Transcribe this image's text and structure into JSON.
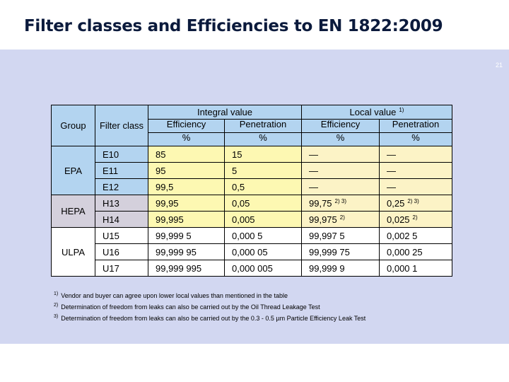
{
  "page": {
    "title": "Filter classes and Efficiencies to EN 1822:2009",
    "page_number": "21"
  },
  "table": {
    "group_header": "Group",
    "filter_class_header": "Filter class",
    "integral_header": "Integral value",
    "local_header": "Local value",
    "local_header_note": "1)",
    "efficiency_label": "Efficiency",
    "penetration_label": "Penetration",
    "percent": "%",
    "groups": [
      "EPA",
      "HEPA",
      "ULPA"
    ],
    "rows": [
      {
        "cls": "E10",
        "ie": "85",
        "ip": "15",
        "le": "—",
        "le_note": "",
        "lp": "—",
        "lp_note": ""
      },
      {
        "cls": "E11",
        "ie": "95",
        "ip": "5",
        "le": "—",
        "le_note": "",
        "lp": "—",
        "lp_note": ""
      },
      {
        "cls": "E12",
        "ie": "99,5",
        "ip": "0,5",
        "le": "—",
        "le_note": "",
        "lp": "—",
        "lp_note": ""
      },
      {
        "cls": "H13",
        "ie": "99,95",
        "ip": "0,05",
        "le": "99,75",
        "le_note": "2) 3)",
        "lp": "0,25",
        "lp_note": "2) 3)"
      },
      {
        "cls": "H14",
        "ie": "99,995",
        "ip": "0,005",
        "le": "99,975",
        "le_note": "2)",
        "lp": "0,025",
        "lp_note": "2)"
      },
      {
        "cls": "U15",
        "ie": "99,999 5",
        "ip": "0,000 5",
        "le": "99,997 5",
        "le_note": "",
        "lp": "0,002 5",
        "lp_note": ""
      },
      {
        "cls": "U16",
        "ie": "99,999 95",
        "ip": "0,000 05",
        "le": "99,999 75",
        "le_note": "",
        "lp": "0,000 25",
        "lp_note": ""
      },
      {
        "cls": "U17",
        "ie": "99,999 995",
        "ip": "0,000 005",
        "le": "99,999 9",
        "le_note": "",
        "lp": "0,000 1",
        "lp_note": ""
      }
    ]
  },
  "footnotes": [
    {
      "mark": "1)",
      "text": "Vendor and buyer can agree upon lower local values than mentioned in the table"
    },
    {
      "mark": "2)",
      "text": "Determination of freedom from leaks can also be carried out by the Oil Thread Leakage Test"
    },
    {
      "mark": "3)",
      "text": "Determination of freedom from leaks can also be carried out by the 0.3 - 0.5 µm Particle Efficiency Leak Test"
    }
  ]
}
